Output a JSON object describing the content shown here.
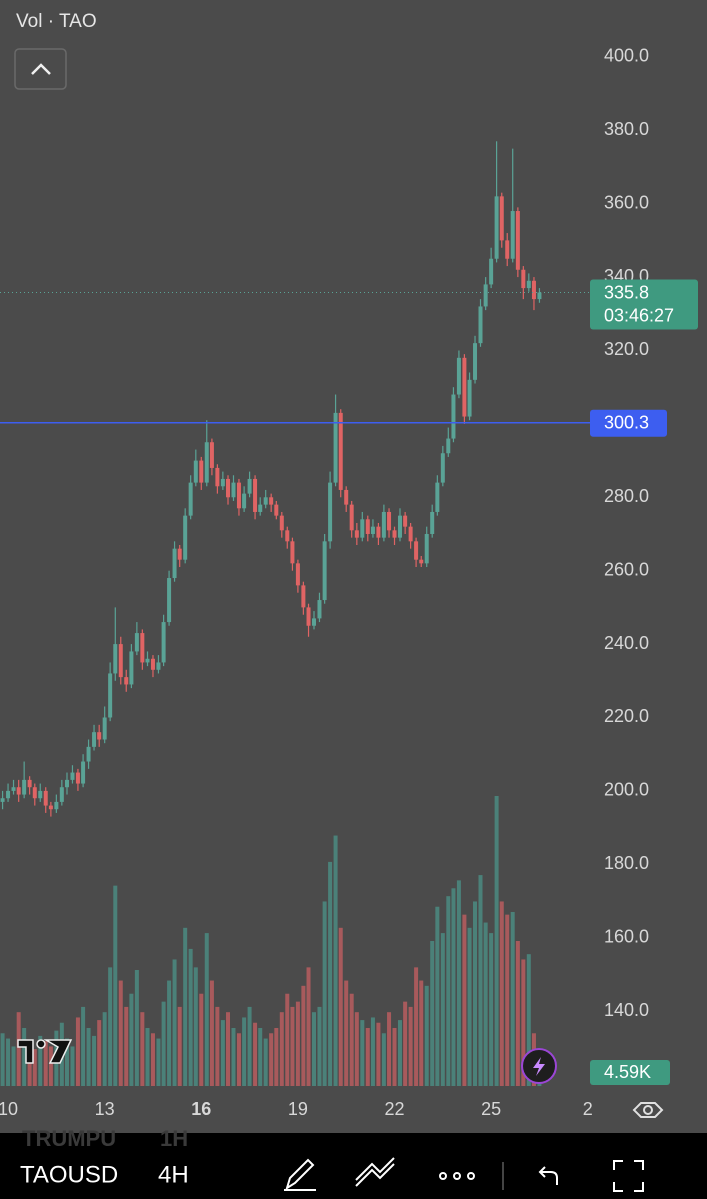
{
  "chart_data": {
    "type": "candlestick",
    "title": "Vol · TAO",
    "symbol": "TAOUSD",
    "interval": "4H",
    "background_symbol": "TRUMPU",
    "background_interval": "1H",
    "up_color": "#5aa396",
    "down_color": "#e06464",
    "xlim": [
      9.75,
      28.07
    ],
    "xticks": [
      10,
      13,
      16,
      19,
      22,
      25,
      {
        "value": 28,
        "label": "2"
      }
    ],
    "ylim": [
      118.5,
      415.5
    ],
    "yticks": [
      {
        "value": 140,
        "label": "140.0"
      },
      {
        "value": 160,
        "label": "160.0"
      },
      {
        "value": 180,
        "label": "180.0"
      },
      {
        "value": 200,
        "label": "200.0"
      },
      {
        "value": 220,
        "label": "220.0"
      },
      {
        "value": 240,
        "label": "240.0"
      },
      {
        "value": 260,
        "label": "260.0"
      },
      {
        "value": 280,
        "label": "280.0"
      },
      {
        "value": 300,
        "label": "300.0"
      },
      {
        "value": 320,
        "label": "320.0"
      },
      {
        "value": 340,
        "label": "340.0"
      },
      {
        "value": 360,
        "label": "360.0"
      },
      {
        "value": 380,
        "label": "380.0"
      },
      {
        "value": 400,
        "label": "400.0"
      }
    ],
    "last_price": 335.8,
    "countdown": "03:46:27",
    "horizontal_line": {
      "value": 300.3,
      "color": "#3d5ef0"
    },
    "x": [
      9.83,
      10,
      10.17,
      10.33,
      10.5,
      10.67,
      10.83,
      11,
      11.17,
      11.33,
      11.5,
      11.67,
      11.83,
      12,
      12.17,
      12.33,
      12.5,
      12.67,
      12.83,
      13,
      13.17,
      13.33,
      13.5,
      13.67,
      13.83,
      14,
      14.17,
      14.33,
      14.5,
      14.67,
      14.83,
      15,
      15.17,
      15.33,
      15.5,
      15.67,
      15.83,
      16,
      16.17,
      16.33,
      16.5,
      16.67,
      16.83,
      17,
      17.17,
      17.33,
      17.5,
      17.67,
      17.83,
      18,
      18.17,
      18.33,
      18.5,
      18.67,
      18.83,
      19,
      19.17,
      19.33,
      19.5,
      19.67,
      19.83,
      20,
      20.17,
      20.33,
      20.5,
      20.67,
      20.83,
      21,
      21.17,
      21.33,
      21.5,
      21.67,
      21.83,
      22,
      22.17,
      22.33,
      22.5,
      22.67,
      22.83,
      23,
      23.17,
      23.33,
      23.5,
      23.67,
      23.83,
      24,
      24.17,
      24.33,
      24.5,
      24.67,
      24.83,
      25,
      25.17,
      25.33,
      25.5,
      25.67,
      25.83,
      26,
      26.17,
      26.33,
      26.5
    ],
    "open": [
      197,
      198,
      200,
      201,
      199,
      203,
      201,
      198,
      200,
      196,
      195,
      197,
      201,
      203,
      205,
      202,
      208,
      212,
      216,
      214,
      220,
      232,
      240,
      231,
      229,
      238,
      243,
      235,
      236,
      233,
      235,
      246,
      258,
      266,
      263,
      275,
      284,
      290,
      284,
      295,
      288,
      283,
      285,
      280,
      284,
      277,
      281,
      285,
      276,
      278,
      280,
      278,
      275,
      271,
      268,
      262,
      256,
      250,
      245,
      247,
      252,
      268,
      284,
      303,
      282,
      278,
      271,
      269,
      274,
      270,
      272,
      269,
      276,
      271,
      269,
      275,
      272,
      268,
      263,
      262,
      270,
      276,
      284,
      292,
      296,
      308,
      318,
      302,
      312,
      322,
      332,
      338,
      345,
      362,
      350,
      345,
      358,
      342,
      337,
      339,
      334
    ],
    "high": [
      200,
      202,
      203,
      203,
      208,
      204,
      202,
      202,
      201,
      197,
      199,
      203,
      205,
      207,
      206,
      210,
      214,
      218,
      218,
      223,
      235,
      250,
      242,
      233,
      240,
      246,
      244,
      238,
      237,
      237,
      248,
      260,
      268,
      267,
      277,
      286,
      293,
      291,
      301,
      296,
      289,
      287,
      286,
      286,
      285,
      283,
      287,
      286,
      280,
      282,
      281,
      279,
      276,
      272,
      269,
      263,
      257,
      251,
      249,
      254,
      270,
      287,
      308,
      304,
      283,
      279,
      273,
      276,
      275,
      274,
      273,
      278,
      277,
      272,
      277,
      276,
      273,
      269,
      264,
      272,
      278,
      286,
      294,
      299,
      310,
      320,
      319,
      314,
      324,
      334,
      340,
      348,
      377,
      363,
      352,
      375,
      359,
      343,
      341,
      340,
      337
    ],
    "low": [
      195,
      197,
      199,
      197,
      198,
      199,
      196,
      197,
      194,
      193,
      194,
      196,
      199,
      202,
      200,
      201,
      206,
      211,
      212,
      213,
      219,
      230,
      229,
      227,
      228,
      237,
      233,
      234,
      231,
      232,
      234,
      245,
      257,
      261,
      262,
      274,
      283,
      282,
      283,
      286,
      281,
      282,
      278,
      279,
      275,
      276,
      280,
      274,
      275,
      277,
      276,
      274,
      269,
      266,
      260,
      254,
      248,
      242,
      244,
      246,
      251,
      266,
      283,
      280,
      276,
      269,
      267,
      268,
      268,
      269,
      267,
      268,
      269,
      267,
      268,
      270,
      266,
      261,
      261,
      261,
      269,
      275,
      283,
      291,
      295,
      307,
      300,
      301,
      311,
      321,
      331,
      337,
      344,
      348,
      343,
      344,
      340,
      334,
      336,
      331,
      333
    ],
    "close": [
      198,
      200,
      201,
      199,
      203,
      201,
      198,
      200,
      196,
      195,
      197,
      201,
      203,
      205,
      202,
      208,
      212,
      216,
      214,
      220,
      232,
      240,
      231,
      229,
      238,
      243,
      235,
      236,
      233,
      235,
      246,
      258,
      266,
      263,
      275,
      284,
      290,
      284,
      295,
      288,
      283,
      285,
      280,
      284,
      277,
      281,
      285,
      276,
      278,
      280,
      278,
      275,
      271,
      268,
      262,
      256,
      250,
      245,
      247,
      252,
      268,
      284,
      303,
      282,
      278,
      271,
      269,
      274,
      270,
      272,
      269,
      276,
      271,
      269,
      275,
      272,
      268,
      263,
      262,
      270,
      276,
      284,
      292,
      296,
      308,
      318,
      302,
      312,
      322,
      332,
      338,
      345,
      362,
      350,
      345,
      358,
      342,
      337,
      339,
      334,
      335.8
    ],
    "volume": {
      "lim": [
        0,
        110000
      ],
      "values": [
        20000,
        18000,
        15000,
        28000,
        22000,
        16000,
        14000,
        19000,
        17000,
        15000,
        21000,
        24000,
        18000,
        15000,
        26000,
        30000,
        22000,
        19000,
        25000,
        28000,
        45000,
        76000,
        40000,
        30000,
        35000,
        44000,
        28000,
        22000,
        20000,
        18000,
        32000,
        40000,
        48000,
        30000,
        60000,
        52000,
        45000,
        35000,
        58000,
        40000,
        30000,
        25000,
        28000,
        22000,
        20000,
        26000,
        30000,
        24000,
        22000,
        18000,
        20000,
        22000,
        28000,
        35000,
        30000,
        32000,
        38000,
        45000,
        28000,
        30000,
        70000,
        85000,
        95000,
        60000,
        40000,
        35000,
        28000,
        25000,
        22000,
        26000,
        24000,
        20000,
        28000,
        22000,
        25000,
        32000,
        30000,
        45000,
        40000,
        38000,
        55000,
        68000,
        58000,
        72000,
        75000,
        78000,
        65000,
        60000,
        70000,
        80000,
        62000,
        58000,
        110000,
        70000,
        65000,
        66000,
        55000,
        48000,
        50000,
        20000,
        4590
      ],
      "last_label": "4.59K",
      "up_color": "#4b8179",
      "down_color": "#a85a5c"
    }
  }
}
